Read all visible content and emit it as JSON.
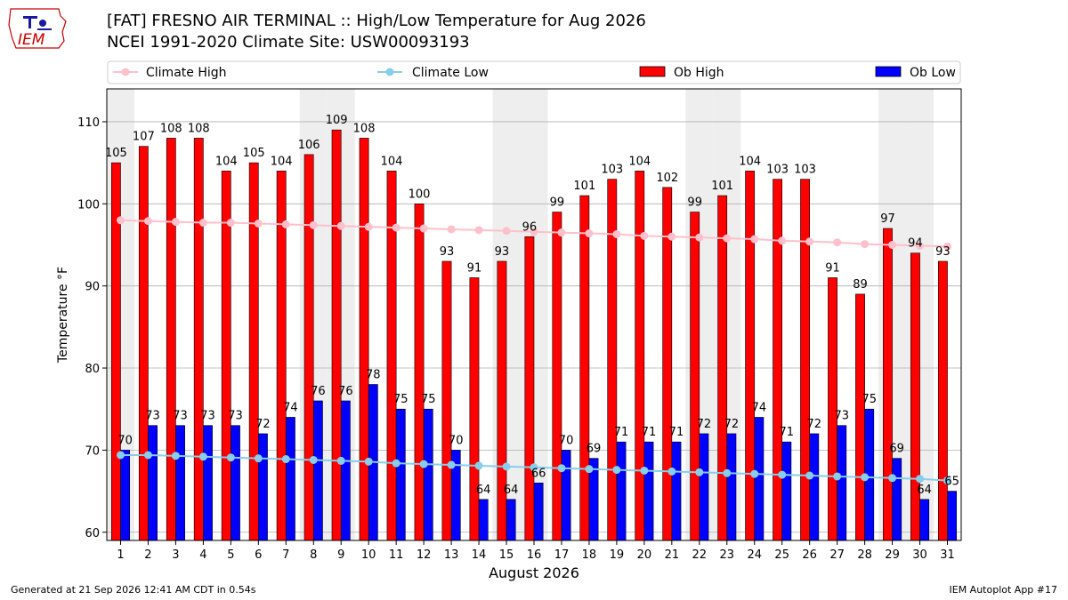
{
  "header": {
    "logo_text": "IEM",
    "title_line1": "[FAT] FRESNO AIR TERMINAL :: High/Low Temperature for Aug 2026",
    "title_line2": "NCEI 1991-2020 Climate Site: USW00093193"
  },
  "footer": {
    "generated": "Generated at 21 Sep 2026 12:41 AM CDT in 0.54s",
    "app": "IEM Autoplot App #17"
  },
  "colors": {
    "ob_high": "#ff0000",
    "ob_low": "#0000ff",
    "climate_high": "#ffc0cb",
    "climate_low": "#87ceeb",
    "weekend_shade": "#eeeeee"
  },
  "chart_data": {
    "type": "bar",
    "xlabel": "August 2026",
    "ylabel": "Temperature °F",
    "ylim": [
      59,
      114
    ],
    "yticks": [
      60,
      70,
      80,
      90,
      100,
      110
    ],
    "grid": true,
    "legend_placement": "top",
    "categories": [
      1,
      2,
      3,
      4,
      5,
      6,
      7,
      8,
      9,
      10,
      11,
      12,
      13,
      14,
      15,
      16,
      17,
      18,
      19,
      20,
      21,
      22,
      23,
      24,
      25,
      26,
      27,
      28,
      29,
      30,
      31
    ],
    "shaded_days": [
      1,
      8,
      9,
      15,
      16,
      22,
      23,
      29,
      30
    ],
    "series": [
      {
        "name": "Ob High",
        "kind": "bar",
        "values": [
          105,
          107,
          108,
          108,
          104,
          105,
          104,
          106,
          109,
          108,
          104,
          100,
          93,
          91,
          93,
          96,
          99,
          101,
          103,
          104,
          102,
          99,
          101,
          104,
          103,
          103,
          91,
          89,
          97,
          94,
          93
        ]
      },
      {
        "name": "Ob Low",
        "kind": "bar",
        "values": [
          70,
          73,
          73,
          73,
          73,
          72,
          74,
          76,
          76,
          78,
          75,
          75,
          70,
          64,
          64,
          66,
          70,
          69,
          71,
          71,
          71,
          72,
          72,
          74,
          71,
          72,
          73,
          75,
          69,
          64,
          65
        ]
      },
      {
        "name": "Climate High",
        "kind": "line",
        "values": [
          98.0,
          97.9,
          97.8,
          97.7,
          97.7,
          97.6,
          97.5,
          97.4,
          97.3,
          97.2,
          97.1,
          97.0,
          96.9,
          96.8,
          96.7,
          96.6,
          96.5,
          96.4,
          96.3,
          96.1,
          96.0,
          95.9,
          95.8,
          95.7,
          95.5,
          95.4,
          95.3,
          95.1,
          95.0,
          94.9,
          94.8
        ]
      },
      {
        "name": "Climate Low",
        "kind": "line",
        "values": [
          69.4,
          69.4,
          69.3,
          69.2,
          69.1,
          69.0,
          68.9,
          68.8,
          68.7,
          68.6,
          68.4,
          68.3,
          68.2,
          68.1,
          68.0,
          67.9,
          67.8,
          67.7,
          67.6,
          67.5,
          67.4,
          67.3,
          67.2,
          67.1,
          67.0,
          66.9,
          66.8,
          66.7,
          66.6,
          66.5,
          66.3
        ]
      }
    ]
  }
}
